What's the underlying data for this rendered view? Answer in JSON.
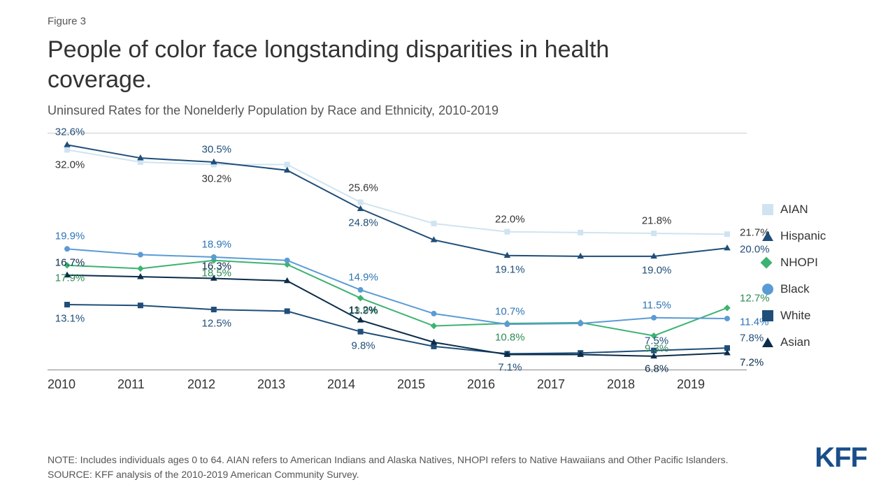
{
  "figure_label": "Figure 3",
  "title": "People of color face longstanding disparities in health coverage.",
  "subtitle": "Uninsured Rates for the Nonelderly Population by Race and Ethnicity, 2010-2019",
  "chart": {
    "type": "line",
    "years": [
      "2010",
      "2011",
      "2012",
      "2013",
      "2014",
      "2015",
      "2016",
      "2017",
      "2018",
      "2019"
    ],
    "ylim": [
      5,
      34
    ],
    "background_color": "#ffffff",
    "border_color": "#888888",
    "line_width": 2,
    "marker_size": 8,
    "series": [
      {
        "name": "AIAN",
        "marker": "square",
        "color": "#cfe4f0",
        "label_color": "#333333",
        "values": [
          32.0,
          30.5,
          30.2,
          30.2,
          25.6,
          23.0,
          22.0,
          21.9,
          21.8,
          21.7
        ],
        "shown_labels": {
          "0": "32.0%",
          "2": "30.2%",
          "4": "25.6%",
          "6": "22.0%",
          "8": "21.8%",
          "9": "21.7%"
        },
        "label_offset_y": {
          "0": 22,
          "2": 20,
          "4": -20,
          "6": -18,
          "8": -18,
          "9": -2
        }
      },
      {
        "name": "Hispanic",
        "marker": "triangle",
        "color": "#1f4e79",
        "label_color": "#1f4e79",
        "values": [
          32.6,
          31.0,
          30.5,
          29.5,
          24.8,
          21.0,
          19.1,
          19.0,
          19.0,
          20.0
        ],
        "shown_labels": {
          "0": "32.6%",
          "2": "30.5%",
          "4": "24.8%",
          "6": "19.1%",
          "8": "19.0%",
          "9": "20.0%"
        },
        "label_offset_y": {
          "0": -18,
          "2": -18,
          "4": 20,
          "6": 20,
          "8": 20,
          "9": 2
        }
      },
      {
        "name": "NHOPI",
        "marker": "diamond",
        "color": "#3cb371",
        "label_color": "#2e8b57",
        "values": [
          17.9,
          17.5,
          18.5,
          18.0,
          13.9,
          10.5,
          10.8,
          10.9,
          9.3,
          12.7
        ],
        "shown_labels": {
          "0": "17.9%",
          "2": "18.5%",
          "4": "13.9%",
          "6": "10.8%",
          "8": "9.3%",
          "9": "12.7%"
        },
        "label_offset_y": {
          "0": 18,
          "2": 18,
          "4": 18,
          "6": 20,
          "8": 18,
          "9": -14
        }
      },
      {
        "name": "Black",
        "marker": "circle",
        "color": "#5b9bd5",
        "label_color": "#2e75b6",
        "values": [
          19.9,
          19.2,
          18.9,
          18.5,
          14.9,
          12.0,
          10.7,
          10.8,
          11.5,
          11.4
        ],
        "shown_labels": {
          "0": "19.9%",
          "2": "18.9%",
          "4": "14.9%",
          "6": "10.7%",
          "8": "11.5%",
          "9": "11.4%"
        },
        "label_offset_y": {
          "0": -18,
          "2": -18,
          "4": -18,
          "6": -18,
          "8": -18,
          "9": 5
        }
      },
      {
        "name": "White",
        "marker": "square",
        "color": "#1f4e79",
        "label_color": "#1f4e79",
        "values": [
          13.1,
          13.0,
          12.5,
          12.3,
          9.8,
          8.0,
          7.1,
          7.2,
          7.5,
          7.8
        ],
        "shown_labels": {
          "0": "13.1%",
          "2": "12.5%",
          "4": "9.8%",
          "6": "7.1%",
          "8": "7.5%",
          "9": "7.8%"
        },
        "label_offset_y": {
          "0": 20,
          "2": 20,
          "4": 20,
          "6": 20,
          "8": -14,
          "9": -14
        }
      },
      {
        "name": "Asian",
        "marker": "triangle",
        "color": "#0b2c4a",
        "label_color": "#0b2c4a",
        "values": [
          16.7,
          16.5,
          16.3,
          16.0,
          11.2,
          8.5,
          7.0,
          7.0,
          6.8,
          7.2
        ],
        "shown_labels": {
          "0": "16.7%",
          "2": "16.3%",
          "4": "11.2%",
          "8": "6.8%",
          "9": "7.2%"
        },
        "label_offset_y": {
          "0": -18,
          "2": -18,
          "4": -14,
          "8": 18,
          "9": 14
        }
      }
    ]
  },
  "note": "NOTE: Includes individuals ages 0 to 64. AIAN refers to American Indians and Alaska Natives, NHOPI refers to Native Hawaiians and Other Pacific Islanders.",
  "source": "SOURCE: KFF analysis of the 2010-2019 American Community Survey.",
  "logo": "KFF"
}
